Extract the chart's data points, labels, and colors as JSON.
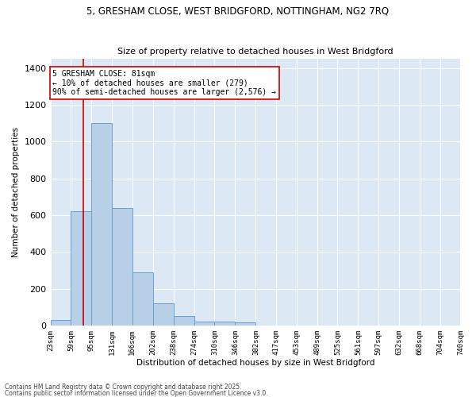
{
  "title_line1": "5, GRESHAM CLOSE, WEST BRIDGFORD, NOTTINGHAM, NG2 7RQ",
  "title_line2": "Size of property relative to detached houses in West Bridgford",
  "xlabel": "Distribution of detached houses by size in West Bridgford",
  "ylabel": "Number of detached properties",
  "bar_color": "#b8cfe8",
  "bar_edge_color": "#6b9fd4",
  "bg_color": "#dde8f5",
  "grid_color": "#ffffff",
  "bins": [
    23,
    59,
    95,
    131,
    166,
    202,
    238,
    274,
    310,
    346,
    382,
    417,
    453,
    489,
    525,
    561,
    597,
    632,
    668,
    704,
    740
  ],
  "counts": [
    30,
    620,
    1100,
    640,
    290,
    120,
    50,
    20,
    20,
    15,
    0,
    0,
    0,
    0,
    0,
    0,
    0,
    0,
    0,
    0
  ],
  "property_size": 81,
  "vline_color": "#cc0000",
  "annotation_text": "5 GRESHAM CLOSE: 81sqm\n← 10% of detached houses are smaller (279)\n90% of semi-detached houses are larger (2,576) →",
  "annotation_box_color": "#ffffff",
  "annotation_box_edge": "#cc0000",
  "ylim": [
    0,
    1450
  ],
  "yticks": [
    0,
    200,
    400,
    600,
    800,
    1000,
    1200,
    1400
  ],
  "footnote1": "Contains HM Land Registry data © Crown copyright and database right 2025.",
  "footnote2": "Contains public sector information licensed under the Open Government Licence v3.0."
}
